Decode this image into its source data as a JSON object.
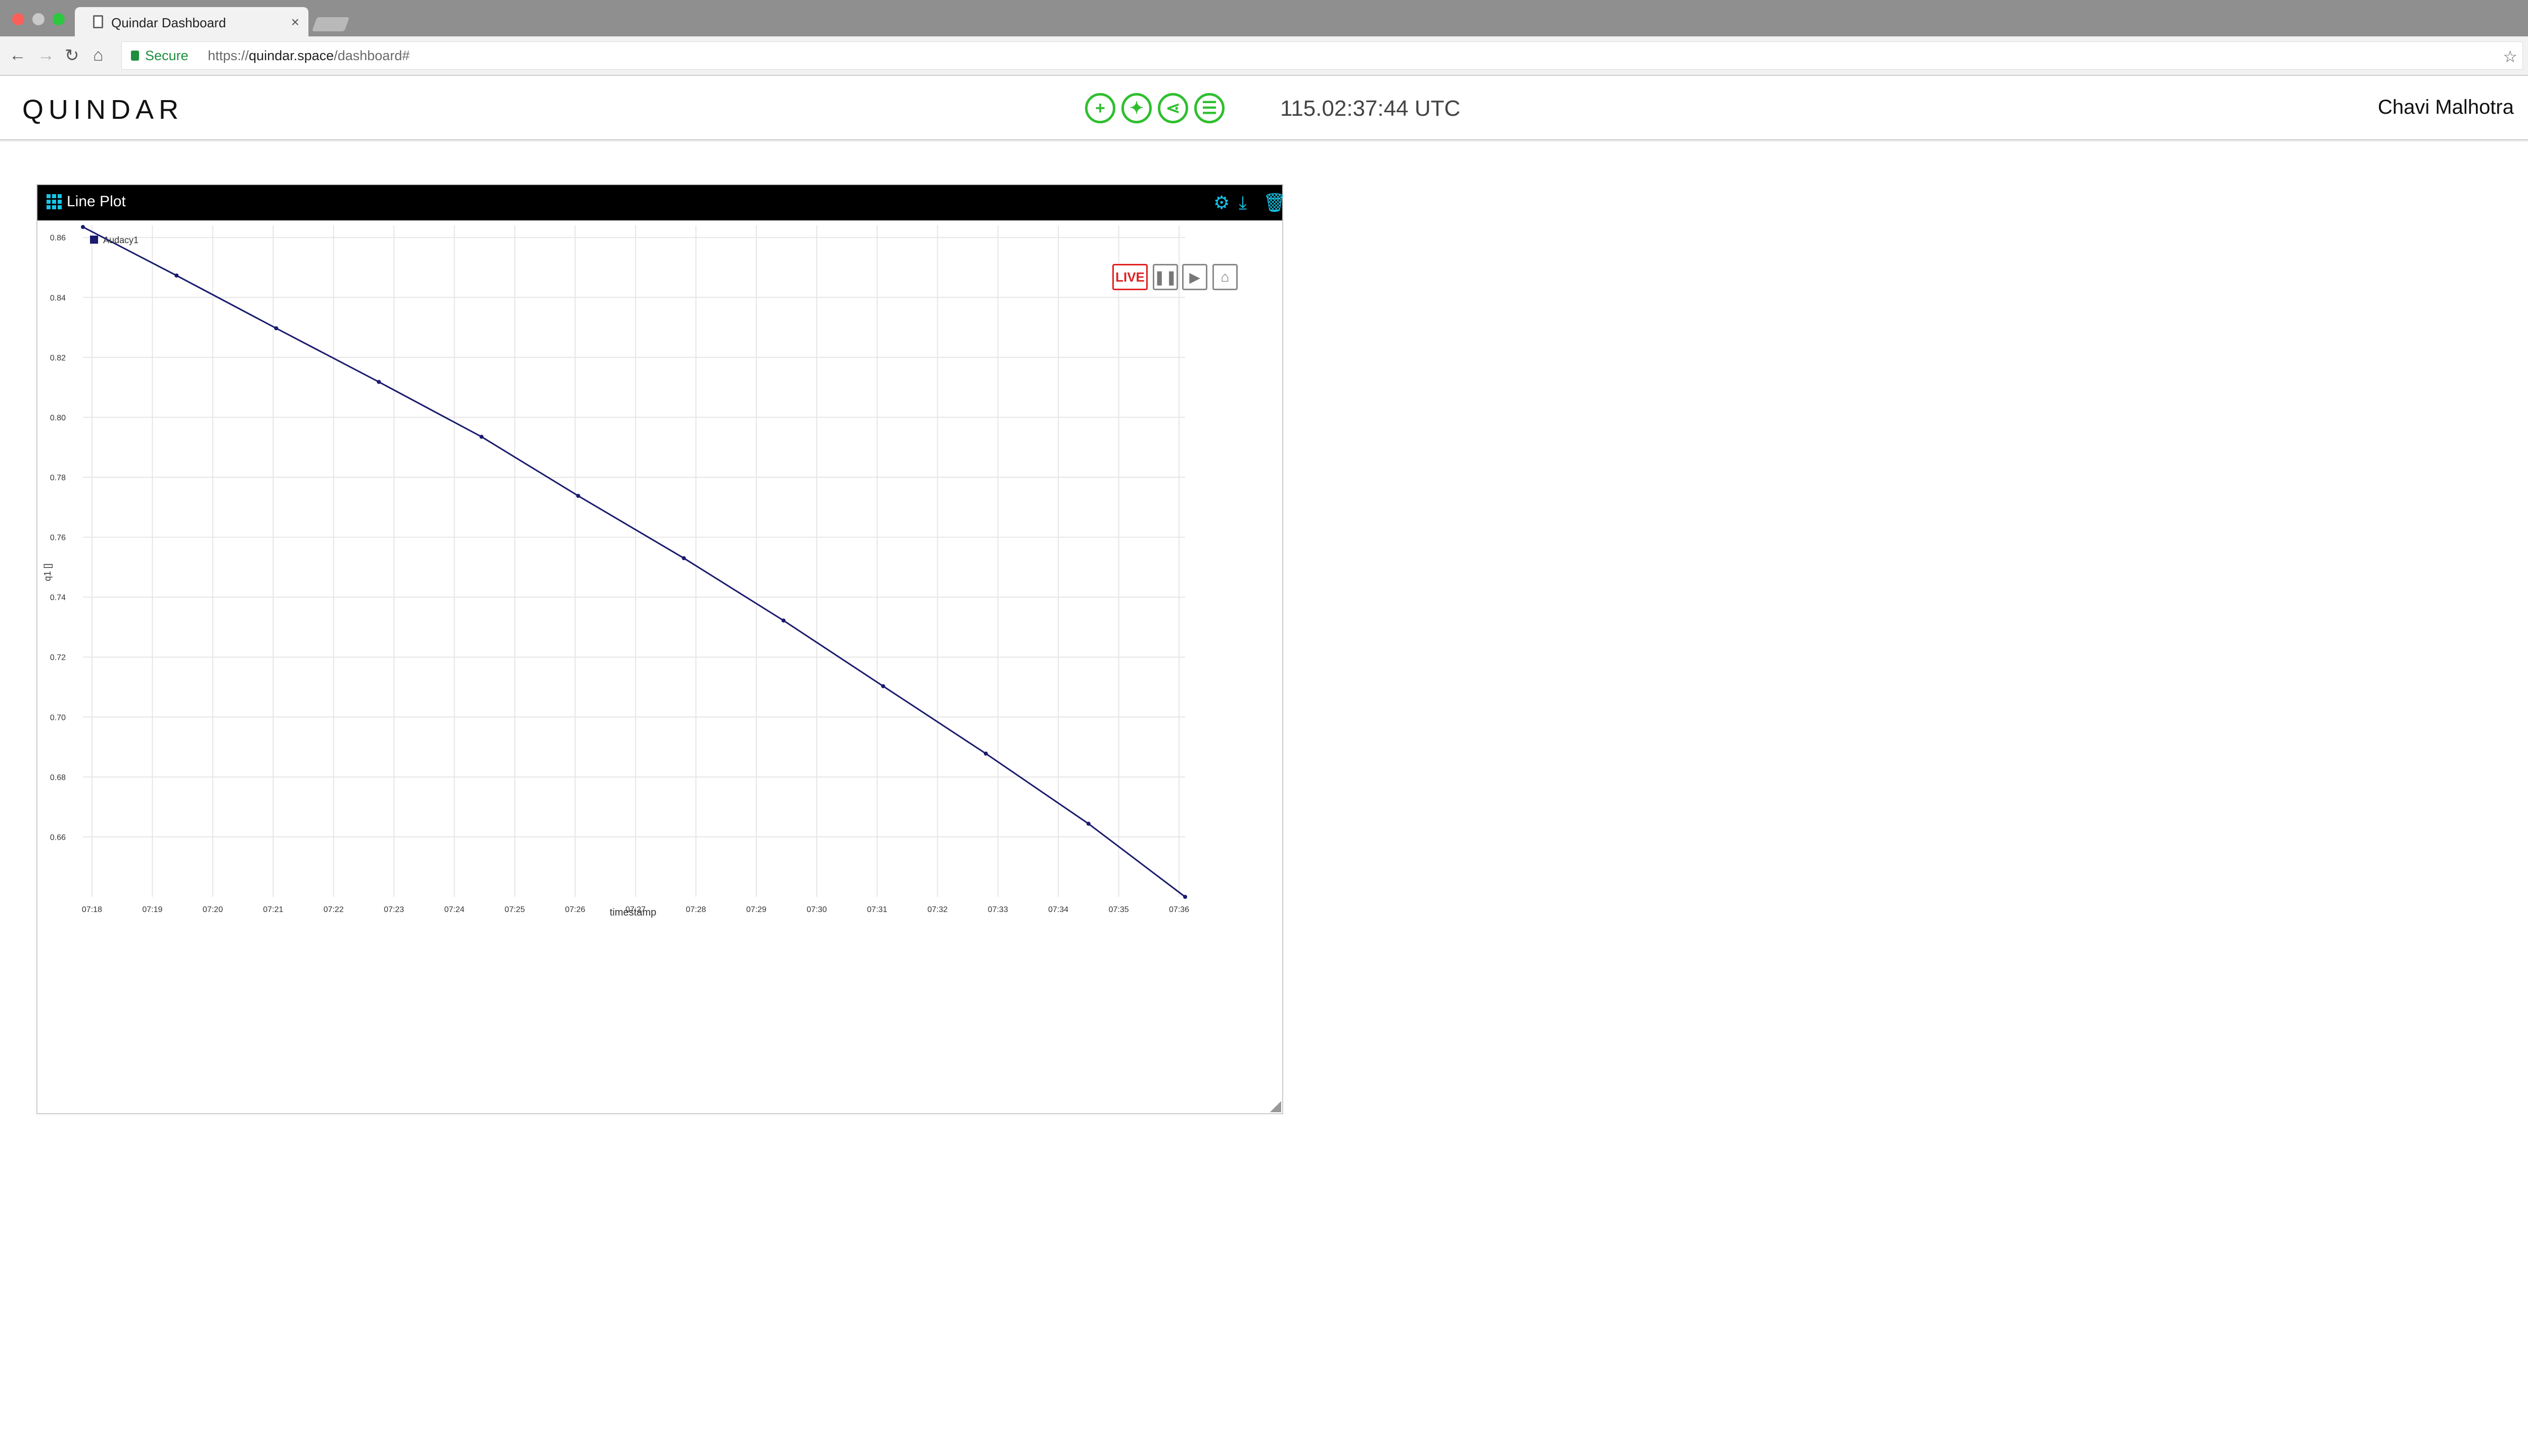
{
  "browser": {
    "tab_title": "Quindar Dashboard",
    "secure_label": "Secure",
    "url_scheme": "https://",
    "url_host": "quindar.space",
    "url_path": "/dashboard#",
    "icons": {
      "back": "back-arrow-icon",
      "forward": "forward-arrow-icon",
      "reload": "reload-icon",
      "home": "home-icon",
      "bookmark": "star-icon"
    }
  },
  "app": {
    "logo": "QUINDAR",
    "clock": "115.02:37:44 UTC",
    "user_name": "Chavi Malhotra",
    "tool_icons": [
      "add-icon",
      "satellite-icon",
      "share-icon",
      "layout-icon"
    ],
    "accent_color": "#16c6e8",
    "tool_color": "#2fbf2f"
  },
  "widget": {
    "title": "Line Plot",
    "controls": {
      "live_label": "LIVE"
    },
    "header_icons": [
      "gear-icon",
      "download-icon",
      "trash-icon"
    ]
  },
  "chart_data": {
    "type": "line",
    "title": "",
    "xlabel": "timestamp",
    "ylabel": "q1 []",
    "legend": {
      "placement": "top-left",
      "entries": [
        "Audacy1"
      ]
    },
    "grid": true,
    "x_ticks": [
      "07:18",
      "07:19",
      "07:20",
      "07:21",
      "07:22",
      "07:23",
      "07:24",
      "07:25",
      "07:26",
      "07:27",
      "07:28",
      "07:29",
      "07:30",
      "07:31",
      "07:32",
      "07:33",
      "07:34",
      "07:35",
      "07:36"
    ],
    "y_ticks": [
      "0.86",
      "0.84",
      "0.82",
      "0.80",
      "0.78",
      "0.76",
      "0.74",
      "0.72",
      "0.70",
      "0.68",
      "0.66"
    ],
    "xlim": [
      "07:17.85",
      "07:36.1"
    ],
    "ylim": [
      0.64,
      0.864
    ],
    "series": [
      {
        "name": "Audacy1",
        "color": "#1a1a6e",
        "points": [
          {
            "t": 17.85,
            "v": 0.8635
          },
          {
            "t": 19.4,
            "v": 0.8473
          },
          {
            "t": 21.05,
            "v": 0.8297
          },
          {
            "t": 22.75,
            "v": 0.8118
          },
          {
            "t": 24.45,
            "v": 0.7935
          },
          {
            "t": 26.05,
            "v": 0.7738
          },
          {
            "t": 27.8,
            "v": 0.753
          },
          {
            "t": 29.45,
            "v": 0.7322
          },
          {
            "t": 31.1,
            "v": 0.7103
          },
          {
            "t": 32.8,
            "v": 0.6878
          },
          {
            "t": 34.5,
            "v": 0.6644
          },
          {
            "t": 36.1,
            "v": 0.64
          }
        ]
      }
    ]
  }
}
